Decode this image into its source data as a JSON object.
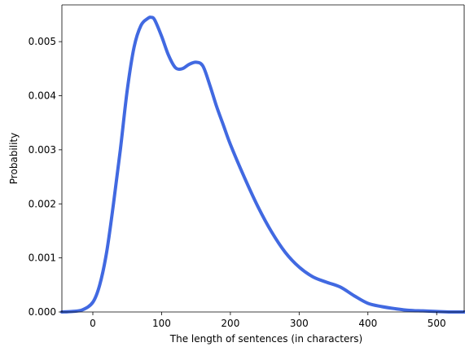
{
  "chart_data": {
    "type": "line",
    "title": "",
    "xlabel": "The length of sentences (in characters)",
    "ylabel": "Probability",
    "xlim": [
      -45,
      540
    ],
    "ylim": [
      0,
      0.00568
    ],
    "xticks": [
      0,
      100,
      200,
      300,
      400,
      500
    ],
    "yticks": [
      0.0,
      0.001,
      0.002,
      0.003,
      0.004,
      0.005
    ],
    "ytick_labels": [
      "0.000",
      "0.001",
      "0.002",
      "0.003",
      "0.004",
      "0.005"
    ],
    "xtick_labels": [
      "0",
      "100",
      "200",
      "300",
      "400",
      "500"
    ],
    "grid": false,
    "legend": "none",
    "series": [
      {
        "color": "#4169E1",
        "x": [
          -45,
          -30,
          -15,
          0,
          10,
          20,
          30,
          40,
          50,
          60,
          70,
          80,
          85,
          90,
          100,
          110,
          120,
          130,
          140,
          150,
          160,
          170,
          180,
          190,
          200,
          220,
          240,
          260,
          280,
          300,
          320,
          340,
          360,
          380,
          400,
          420,
          440,
          460,
          480,
          500,
          520,
          540
        ],
        "y": [
          0.0,
          1e-05,
          4e-05,
          0.00018,
          0.0005,
          0.0011,
          0.002,
          0.003,
          0.0041,
          0.0049,
          0.0053,
          0.00543,
          0.00545,
          0.0054,
          0.0051,
          0.00475,
          0.00452,
          0.0045,
          0.00458,
          0.00462,
          0.00455,
          0.0042,
          0.0038,
          0.00345,
          0.0031,
          0.0025,
          0.00195,
          0.00148,
          0.0011,
          0.00083,
          0.00065,
          0.00055,
          0.00046,
          0.0003,
          0.00016,
          0.0001,
          6e-05,
          3e-05,
          2e-05,
          1e-05,
          0.0,
          0.0
        ]
      }
    ]
  }
}
